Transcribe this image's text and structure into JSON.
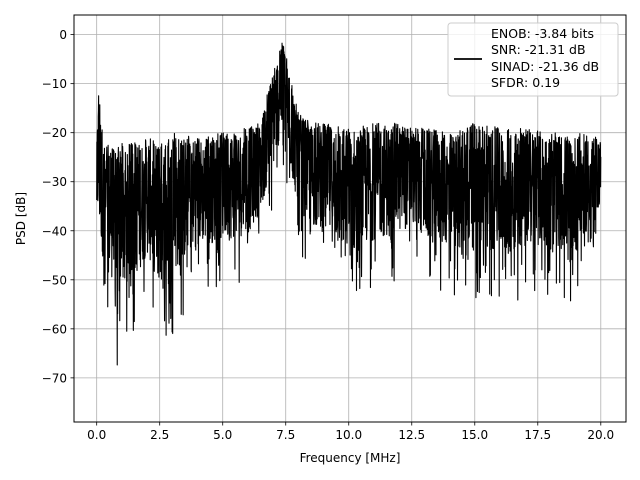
{
  "chart_data": {
    "type": "line",
    "title": "",
    "xlabel": "Frequency [MHz]",
    "ylabel": "PSD [dB]",
    "xlim": [
      -0.9,
      21.0
    ],
    "ylim": [
      -79.0,
      4.0
    ],
    "xticks": [
      0.0,
      2.5,
      5.0,
      7.5,
      10.0,
      12.5,
      15.0,
      17.5,
      20.0
    ],
    "xtick_labels": [
      "0.0",
      "2.5",
      "5.0",
      "7.5",
      "10.0",
      "12.5",
      "15.0",
      "17.5",
      "20.0"
    ],
    "yticks": [
      0,
      -10,
      -20,
      -30,
      -40,
      -50,
      -60,
      -70
    ],
    "ytick_labels": [
      "0",
      "−10",
      "−20",
      "−30",
      "−40",
      "−50",
      "−60",
      "−70"
    ],
    "grid": true,
    "legend_position": "top-right",
    "legend": {
      "lines": [
        "ENOB: -3.84 bits",
        "SNR: -21.31 dB",
        "SINAD: -21.36 dB",
        "SFDR: 0.19"
      ]
    },
    "series": [
      {
        "color": "#000000",
        "envelope": {
          "x": [
            0.0,
            0.05,
            0.3,
            0.6,
            0.8,
            1.0,
            1.5,
            2.0,
            2.6,
            3.0,
            4.0,
            5.0,
            6.0,
            6.5,
            6.8,
            7.0,
            7.2,
            7.4,
            7.5,
            7.7,
            8.0,
            8.5,
            9.0,
            10.0,
            11.0,
            12.0,
            12.6,
            13.0,
            14.0,
            14.5,
            15.0,
            16.0,
            16.5,
            17.0,
            18.0,
            19.0,
            20.0
          ],
          "upper": [
            -24,
            -10,
            -22,
            -23,
            -23,
            -22,
            -22,
            -21,
            -22,
            -20,
            -21,
            -20,
            -19,
            -18,
            -11,
            -7,
            -4,
            -1,
            -3,
            -9,
            -16,
            -18,
            -18,
            -19,
            -18,
            -18,
            -19,
            -19,
            -20,
            -19,
            -18,
            -19,
            -19,
            -19,
            -20,
            -20,
            -21
          ],
          "lower": [
            -44,
            -52,
            -58,
            -61,
            -75,
            -63,
            -62,
            -55,
            -66,
            -62,
            -52,
            -52,
            -50,
            -44,
            -38,
            -36,
            -30,
            -28,
            -30,
            -36,
            -44,
            -48,
            -50,
            -57,
            -52,
            -50,
            -47,
            -52,
            -53,
            -56,
            -54,
            -56,
            -55,
            -53,
            -53,
            -55,
            -40
          ]
        }
      }
    ]
  }
}
